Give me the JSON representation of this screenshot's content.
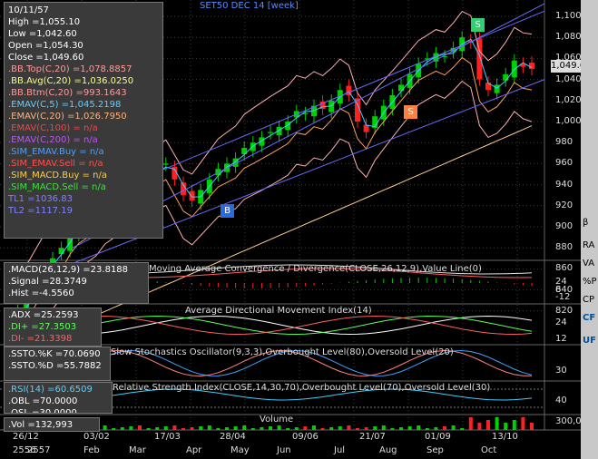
{
  "chart_title": "SET50 DEC 14   [week]",
  "info": {
    "date": "10/11/57",
    "lines": [
      {
        "t": "High  =1,055.10",
        "c": "#ffffff"
      },
      {
        "t": "Low  =1,042.60",
        "c": "#ffffff"
      },
      {
        "t": "Open  =1,054.30",
        "c": "#ffffff"
      },
      {
        "t": "Close  =1,049.60",
        "c": "#ffffff"
      },
      {
        "t": ".BB.Top(C,20)  =1,078.8857",
        "c": "#ff9a9a"
      },
      {
        "t": ".BB.Avg(C,20)  =1,036.0250",
        "c": "#ffff80"
      },
      {
        "t": ".BB.Btm(C,20)  =993.1643",
        "c": "#ff9a9a"
      },
      {
        "t": ".EMAV(C,5)  =1,045.2198",
        "c": "#5fd0ff"
      },
      {
        "t": ".EMAV(C,20)  =1,026.7950",
        "c": "#ffb27a"
      },
      {
        "t": ".EMAV(C,100)  = n/a",
        "c": "#ff4040"
      },
      {
        "t": ".EMAV(C,200)  = n/a",
        "c": "#c050ff"
      },
      {
        "t": ".SIM_EMAV.Buy  = n/a",
        "c": "#4aa0ff"
      },
      {
        "t": ".SIM_EMAV.Sell  = n/a",
        "c": "#ff5050"
      },
      {
        "t": ".SIM_MACD.Buy  = n/a",
        "c": "#ffd040"
      },
      {
        "t": ".SIM_MACD.Sell  = n/a",
        "c": "#40e040"
      },
      {
        "t": "TL1 =1036.83",
        "c": "#8080ff"
      },
      {
        "t": "TL2 =1117.19",
        "c": "#8080ff"
      }
    ]
  },
  "macd_box": [
    {
      "t": ".MACD(26,12,9)  =23.8188",
      "c": "#ffffff"
    },
    {
      "t": ".Signal  =28.3749",
      "c": "#ffffff"
    },
    {
      "t": ".Hist  =-4.5560",
      "c": "#ffffff"
    }
  ],
  "macd_title": "Moving Average Convergence / Divergence(CLOSE,26,12,9),Value Line(0)",
  "adx_box": [
    {
      "t": ".ADX  =25.2593",
      "c": "#ffffff"
    },
    {
      "t": ".DI+  =27.3503",
      "c": "#5aff5a"
    },
    {
      "t": ".DI-  =21.3398",
      "c": "#ff6060"
    }
  ],
  "adx_title": "Average Directional Movement Index(14)",
  "ssto_box": [
    {
      "t": ".SSTO.%K  =70.0690",
      "c": "#ffffff"
    },
    {
      "t": ".SSTO.%D  =55.7882",
      "c": "#ffffff"
    }
  ],
  "ssto_title": "Slow Stochastics Oscillator(9,3,3),Overbought Level(80),Oversold Level(20)",
  "rsi_box": [
    {
      "t": ".RSI(14)  =60.6509",
      "c": "#5fd0ff"
    },
    {
      "t": ".OBL  =70.0000",
      "c": "#ffffff"
    },
    {
      "t": ".OSL  =30.0000",
      "c": "#ffffff"
    }
  ],
  "rsi_title": "Relative Strength Index(CLOSE,14,30,70),Overbought Level(70),Oversold Level(30)",
  "vol_box": ".Vol  =132,993",
  "vol_title": "Volume",
  "price_axis": [
    "1,100",
    "1,080",
    "1,060",
    "1,040",
    "1,020",
    "1,000",
    "980",
    "960",
    "940",
    "920",
    "900",
    "880",
    "860",
    "840",
    "820"
  ],
  "last_price": "1,049.6",
  "macd_axis": [
    "24",
    "6",
    "-12"
  ],
  "adx_axis": [
    "24",
    "12"
  ],
  "ssto_axis": [
    "30"
  ],
  "rsi_axis": [
    "40"
  ],
  "vol_axis": [
    "300,0"
  ],
  "markers": {
    "s_top": "S",
    "s_mid": "S",
    "b": "B"
  },
  "x_dates": [
    "26/12",
    "03/02",
    "17/03",
    "28/04",
    "09/06",
    "21/07",
    "01/09",
    "13/10"
  ],
  "x_months": [
    "Feb",
    "Mar",
    "Apr",
    "May",
    "Jun",
    "Jul",
    "Aug",
    "Sep",
    "Oct"
  ],
  "x_years": [
    "2556",
    "2557"
  ],
  "right_toolbar": [
    "β",
    "RA",
    "VA",
    "%P",
    "CP",
    "CF",
    "UF"
  ],
  "colors": {
    "bg": "#000000",
    "up": "#00d000",
    "down": "#ff2020",
    "grid": "#3a3a3a",
    "trend": "#6a6aff",
    "bb": "#ffb0b0",
    "ema5": "#40d0ff",
    "ema20": "#ffa060",
    "ema100": "#ffd090"
  }
}
